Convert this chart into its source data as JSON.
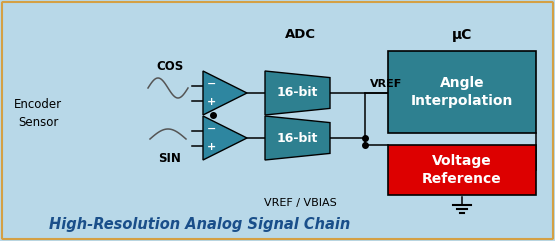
{
  "bg_color": "#b8d8e8",
  "border_color": "#d4a044",
  "title": "High-Resolution Analog Signal Chain",
  "title_color": "#1a4f8a",
  "title_fontsize": 10.5,
  "encoder_label": "Encoder\nSensor",
  "cos_label": "COS",
  "sin_label": "SIN",
  "adc_label": "ADC",
  "uc_label": "μC",
  "bit16_label": "16-bit",
  "angle_label": "Angle\nInterpolation",
  "vref_box_label": "Voltage\nReference",
  "vref_text": "VREF",
  "vbias_text": "VREF / VBIAS",
  "amp_color": "#2e86a0",
  "adc_color": "#2e8090",
  "angle_color": "#2e8090",
  "vref_color": "#dd0000",
  "line_color": "#000000",
  "white_text": "#ffffff",
  "dark_text": "#000000",
  "blue_text": "#1a4f8a"
}
